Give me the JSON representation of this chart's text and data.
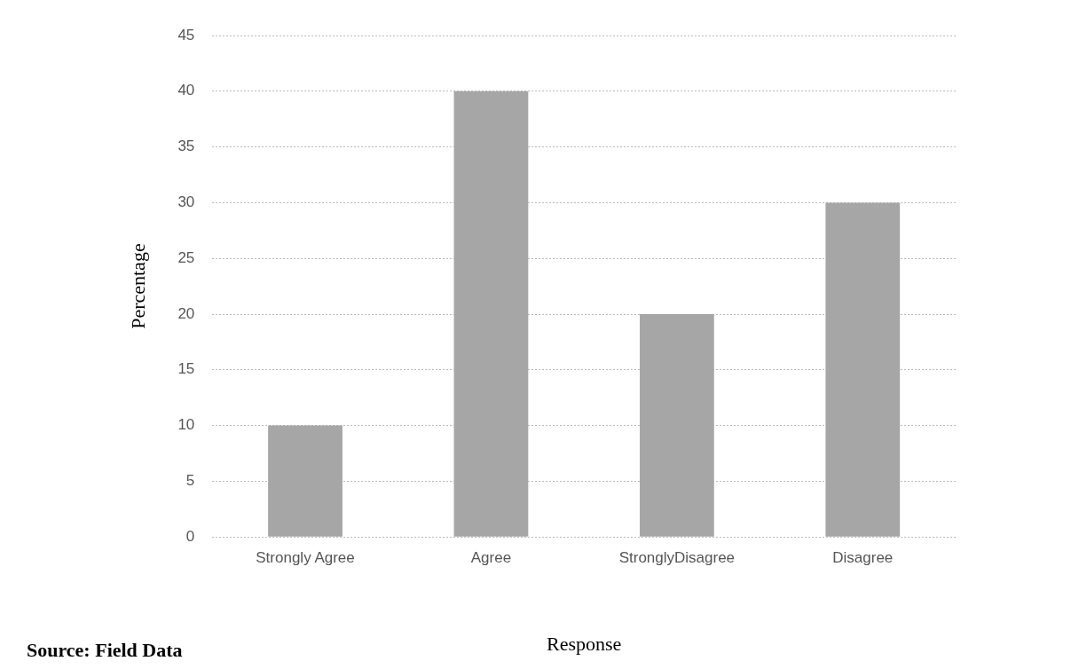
{
  "chart_data": {
    "type": "bar",
    "categories": [
      "Strongly Agree",
      "Agree",
      "StronglyDisagree",
      "Disagree"
    ],
    "values": [
      10,
      40,
      20,
      30
    ],
    "color": "#a6a6a6",
    "ylim": [
      0,
      45
    ],
    "yticks": [
      0,
      5,
      10,
      15,
      20,
      25,
      30,
      35,
      40,
      45
    ],
    "grid": "y",
    "xlabel": "Response",
    "ylabel": "Percentage",
    "annotations": [
      "Source: Field Data"
    ]
  }
}
